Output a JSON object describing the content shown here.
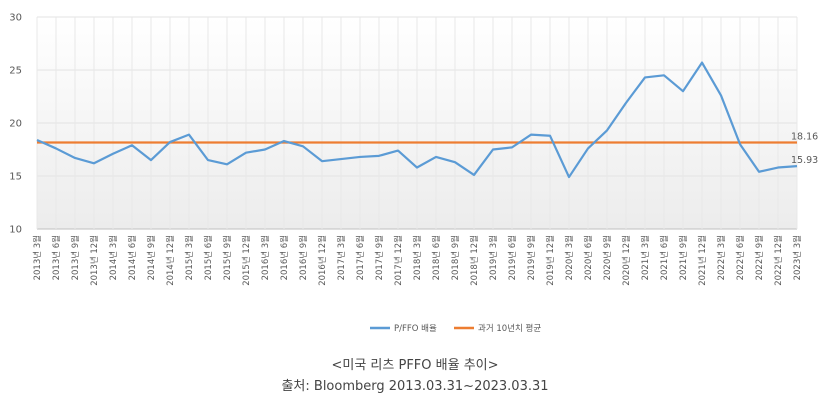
{
  "chart_data": {
    "type": "line",
    "title": "",
    "xlabel": "",
    "ylabel": "",
    "ylim": [
      10,
      30
    ],
    "yticks": [
      10,
      15,
      20,
      25,
      30
    ],
    "categories": [
      "2013년 3월",
      "2013년 6월",
      "2013년 9월",
      "2013년 12월",
      "2014년 3월",
      "2014년 6월",
      "2014년 9월",
      "2014년 12월",
      "2015년 3월",
      "2015년 6월",
      "2015년 9월",
      "2015년 12월",
      "2016년 3월",
      "2016년 6월",
      "2016년 9월",
      "2016년 12월",
      "2017년 3월",
      "2017년 6월",
      "2017년 9월",
      "2017년 12월",
      "2018년 3월",
      "2018년 6월",
      "2018년 9월",
      "2018년 12월",
      "2019년 3월",
      "2019년 6월",
      "2019년 9월",
      "2019년 12월",
      "2020년 3월",
      "2020년 6월",
      "2020년 9월",
      "2020년 12월",
      "2021년 3월",
      "2021년 6월",
      "2021년 9월",
      "2021년 12월",
      "2022년 3월",
      "2022년 6월",
      "2022년 9월",
      "2022년 12월",
      "2023년 3월"
    ],
    "series": [
      {
        "name": "P/FFO 배율",
        "color": "#5b9bd5",
        "values": [
          18.4,
          17.6,
          16.7,
          16.2,
          17.1,
          17.9,
          16.5,
          18.2,
          18.9,
          16.5,
          16.1,
          17.2,
          17.5,
          18.3,
          17.8,
          16.4,
          16.6,
          16.8,
          16.9,
          17.4,
          15.8,
          16.8,
          16.3,
          15.1,
          17.5,
          17.7,
          18.9,
          18.8,
          14.9,
          17.6,
          19.3,
          21.9,
          24.3,
          24.5,
          23.0,
          25.7,
          22.6,
          18.0,
          15.4,
          15.8,
          15.93
        ]
      },
      {
        "name": "과거 10년치 평균",
        "color": "#ed7d31",
        "values": [
          18.16,
          18.16,
          18.16,
          18.16,
          18.16,
          18.16,
          18.16,
          18.16,
          18.16,
          18.16,
          18.16,
          18.16,
          18.16,
          18.16,
          18.16,
          18.16,
          18.16,
          18.16,
          18.16,
          18.16,
          18.16,
          18.16,
          18.16,
          18.16,
          18.16,
          18.16,
          18.16,
          18.16,
          18.16,
          18.16,
          18.16,
          18.16,
          18.16,
          18.16,
          18.16,
          18.16,
          18.16,
          18.16,
          18.16,
          18.16,
          18.16
        ]
      }
    ],
    "annotations": [
      "18.16",
      "15.93"
    ],
    "legend": "bottom-center",
    "grid": true
  },
  "caption": {
    "title": "<미국 리츠 PFFO 배율 추이>",
    "source": "출처: Bloomberg 2013.03.31~2023.03.31"
  }
}
